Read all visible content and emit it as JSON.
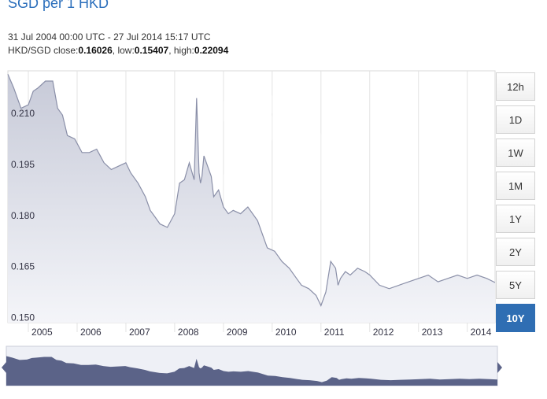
{
  "header": {
    "title": "SGD per 1 HKD",
    "date_range": "31 Jul 2004 00:00 UTC - 27 Jul 2014 15:17 UTC",
    "pair": "HKD/SGD",
    "close_label": "close:",
    "close_value": "0.16026",
    "low_label": "low:",
    "low_value": "0.15407",
    "high_label": "high:",
    "high_value": "0.22094"
  },
  "range_buttons": [
    {
      "label": "12h",
      "active": false
    },
    {
      "label": "1D",
      "active": false
    },
    {
      "label": "1W",
      "active": false
    },
    {
      "label": "1M",
      "active": false
    },
    {
      "label": "1Y",
      "active": false
    },
    {
      "label": "2Y",
      "active": false
    },
    {
      "label": "5Y",
      "active": false
    },
    {
      "label": "10Y",
      "active": true
    }
  ],
  "colors": {
    "line": "#8a8fa8",
    "area_top": "#c7cad8",
    "area_bottom": "#f4f5f9",
    "navigator_fill": "#5b6388",
    "accent": "#2f6eb3"
  },
  "chart_data": {
    "type": "area",
    "title": "SGD per 1 HKD",
    "xlabel": "",
    "ylabel": "",
    "xlim": [
      2004.58,
      2014.57
    ],
    "ylim": [
      0.1485,
      0.2225
    ],
    "yticks": [
      "0.150",
      "0.165",
      "0.180",
      "0.195",
      "0.210"
    ],
    "xticks": [
      "2005",
      "2006",
      "2007",
      "2008",
      "2009",
      "2010",
      "2011",
      "2012",
      "2013",
      "2014"
    ],
    "grid": true,
    "series": [
      {
        "name": "",
        "x": [
          2004.58,
          2004.7,
          2004.85,
          2005.0,
          2005.1,
          2005.2,
          2005.35,
          2005.5,
          2005.6,
          2005.7,
          2005.8,
          2005.95,
          2006.1,
          2006.25,
          2006.4,
          2006.55,
          2006.7,
          2006.85,
          2007.0,
          2007.1,
          2007.25,
          2007.4,
          2007.5,
          2007.6,
          2007.7,
          2007.85,
          2008.0,
          2008.1,
          2008.2,
          2008.3,
          2008.4,
          2008.45,
          2008.5,
          2008.53,
          2008.56,
          2008.6,
          2008.7,
          2008.75,
          2008.8,
          2008.9,
          2009.0,
          2009.1,
          2009.2,
          2009.35,
          2009.5,
          2009.7,
          2009.9,
          2010.05,
          2010.2,
          2010.35,
          2010.5,
          2010.6,
          2010.75,
          2010.9,
          2011.0,
          2011.1,
          2011.2,
          2011.3,
          2011.35,
          2011.4,
          2011.5,
          2011.6,
          2011.75,
          2011.9,
          2012.0,
          2012.2,
          2012.4,
          2012.6,
          2012.8,
          2013.0,
          2013.2,
          2013.4,
          2013.6,
          2013.8,
          2014.0,
          2014.2,
          2014.4,
          2014.57
        ],
        "values": [
          0.2215,
          0.2175,
          0.2115,
          0.2125,
          0.2165,
          0.2175,
          0.2195,
          0.2195,
          0.2115,
          0.2095,
          0.2035,
          0.2025,
          0.1985,
          0.1985,
          0.1995,
          0.1955,
          0.1935,
          0.1945,
          0.1955,
          0.1925,
          0.1895,
          0.1855,
          0.1815,
          0.1795,
          0.1775,
          0.1765,
          0.1805,
          0.1895,
          0.1905,
          0.1955,
          0.1905,
          0.2145,
          0.1925,
          0.1895,
          0.1915,
          0.1975,
          0.1935,
          0.1915,
          0.1855,
          0.1875,
          0.1825,
          0.1805,
          0.1815,
          0.1805,
          0.1825,
          0.1785,
          0.1705,
          0.1695,
          0.1665,
          0.1645,
          0.1615,
          0.1595,
          0.1585,
          0.1565,
          0.1535,
          0.1575,
          0.1665,
          0.1645,
          0.1595,
          0.1615,
          0.1635,
          0.1625,
          0.1645,
          0.1635,
          0.1625,
          0.1595,
          0.1585,
          0.1595,
          0.1605,
          0.1615,
          0.1625,
          0.1605,
          0.1615,
          0.1625,
          0.1615,
          0.1625,
          0.1615,
          0.1603
        ]
      }
    ]
  }
}
